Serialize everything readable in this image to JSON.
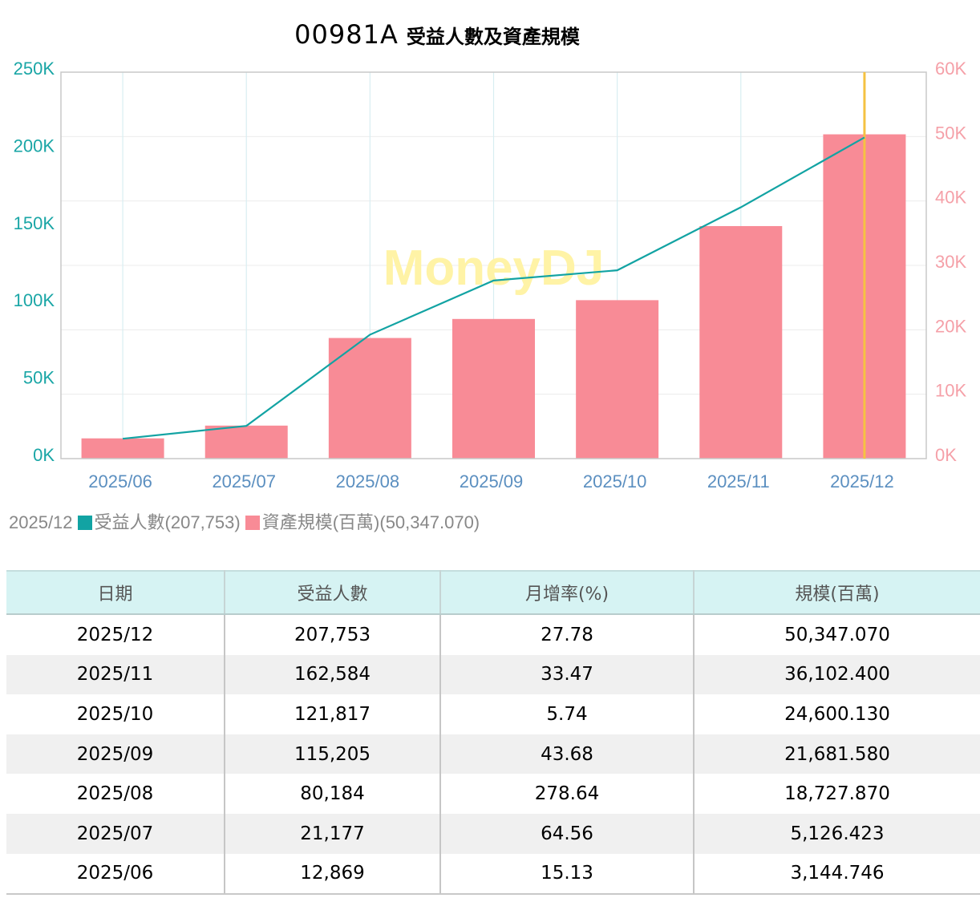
{
  "title": {
    "code": "00981A",
    "name": "受益人數及資產規模"
  },
  "colors": {
    "line": "#12a3a3",
    "bar": "#f88b96",
    "left_axis": "#1aa6a6",
    "right_axis": "#f5a0a8",
    "cursor": "#f5c242",
    "watermark": "#fff3a6",
    "grid": "#ececec",
    "vgrid": "#d8eef2"
  },
  "watermark": "MoneyDJ",
  "chart_data": {
    "type": "bar+line",
    "title": "00981A 受益人數及資產規模",
    "categories": [
      "2025/06",
      "2025/07",
      "2025/08",
      "2025/09",
      "2025/10",
      "2025/11",
      "2025/12"
    ],
    "series": [
      {
        "name": "受益人數",
        "type": "line",
        "axis": "left",
        "values": [
          12869,
          21177,
          80184,
          115205,
          121817,
          162584,
          207753
        ]
      },
      {
        "name": "資產規模(百萬)",
        "type": "bar",
        "axis": "right",
        "values": [
          3144.746,
          5126.423,
          18727.87,
          21681.58,
          24600.13,
          36102.4,
          50347.07
        ]
      }
    ],
    "left_axis": {
      "ylim": [
        0,
        250000
      ],
      "ticks": [
        "0K",
        "50K",
        "100K",
        "150K",
        "200K",
        "250K"
      ]
    },
    "right_axis": {
      "ylim": [
        0,
        60000
      ],
      "ticks": [
        "0K",
        "10K",
        "20K",
        "30K",
        "40K",
        "50K",
        "60K"
      ]
    },
    "highlight_category": "2025/12"
  },
  "legend": {
    "period": "2025/12",
    "line_label": "受益人數(207,753)",
    "bar_label": "資產規模(百萬)(50,347.070)"
  },
  "table": {
    "headers": [
      "日期",
      "受益人數",
      "月增率(%)",
      "規模(百萬)"
    ],
    "rows": [
      [
        "2025/12",
        "207,753",
        "27.78",
        "50,347.070"
      ],
      [
        "2025/11",
        "162,584",
        "33.47",
        "36,102.400"
      ],
      [
        "2025/10",
        "121,817",
        "5.74",
        "24,600.130"
      ],
      [
        "2025/09",
        "115,205",
        "43.68",
        "21,681.580"
      ],
      [
        "2025/08",
        "80,184",
        "278.64",
        "18,727.870"
      ],
      [
        "2025/07",
        "21,177",
        "64.56",
        "5,126.423"
      ],
      [
        "2025/06",
        "12,869",
        "15.13",
        "3,144.746"
      ]
    ]
  }
}
